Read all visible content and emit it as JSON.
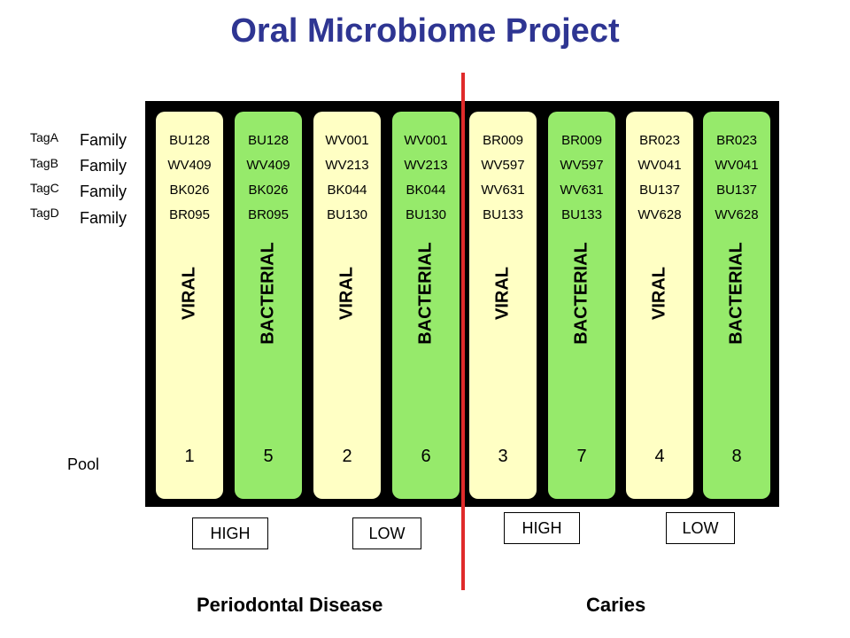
{
  "title": "Oral Microbiome Project",
  "tags": [
    "TagA",
    "TagB",
    "TagC",
    "TagD"
  ],
  "family_label": "Family",
  "pool_label": "Pool",
  "lanes": [
    {
      "type": "viral",
      "label": "VIRAL",
      "codes": [
        "BU128",
        "WV409",
        "BK026",
        "BR095"
      ],
      "pool": "1"
    },
    {
      "type": "bacterial",
      "label": "BACTERIAL",
      "codes": [
        "BU128",
        "WV409",
        "BK026",
        "BR095"
      ],
      "pool": "5"
    },
    {
      "type": "viral",
      "label": "VIRAL",
      "codes": [
        "WV001",
        "WV213",
        "BK044",
        "BU130"
      ],
      "pool": "2"
    },
    {
      "type": "bacterial",
      "label": "BACTERIAL",
      "codes": [
        "WV001",
        "WV213",
        "BK044",
        "BU130"
      ],
      "pool": "6"
    },
    {
      "type": "viral",
      "label": "VIRAL",
      "codes": [
        "BR009",
        "WV597",
        "WV631",
        "BU133"
      ],
      "pool": "3"
    },
    {
      "type": "bacterial",
      "label": "BACTERIAL",
      "codes": [
        "BR009",
        "WV597",
        "WV631",
        "BU133"
      ],
      "pool": "7"
    },
    {
      "type": "viral",
      "label": "VIRAL",
      "codes": [
        "BR023",
        "WV041",
        "BU137",
        "WV628"
      ],
      "pool": "4"
    },
    {
      "type": "bacterial",
      "label": "BACTERIAL",
      "codes": [
        "BR023",
        "WV041",
        "BU137",
        "WV628"
      ],
      "pool": "8"
    }
  ],
  "levels": [
    "HIGH",
    "LOW",
    "HIGH",
    "LOW"
  ],
  "sections": [
    "Periodontal Disease",
    "Caries"
  ],
  "colors": {
    "title": "#2e3592",
    "viral": "#ffffc4",
    "bacterial": "#96ea6b",
    "divider": "#e02a2a",
    "board": "#000000"
  }
}
